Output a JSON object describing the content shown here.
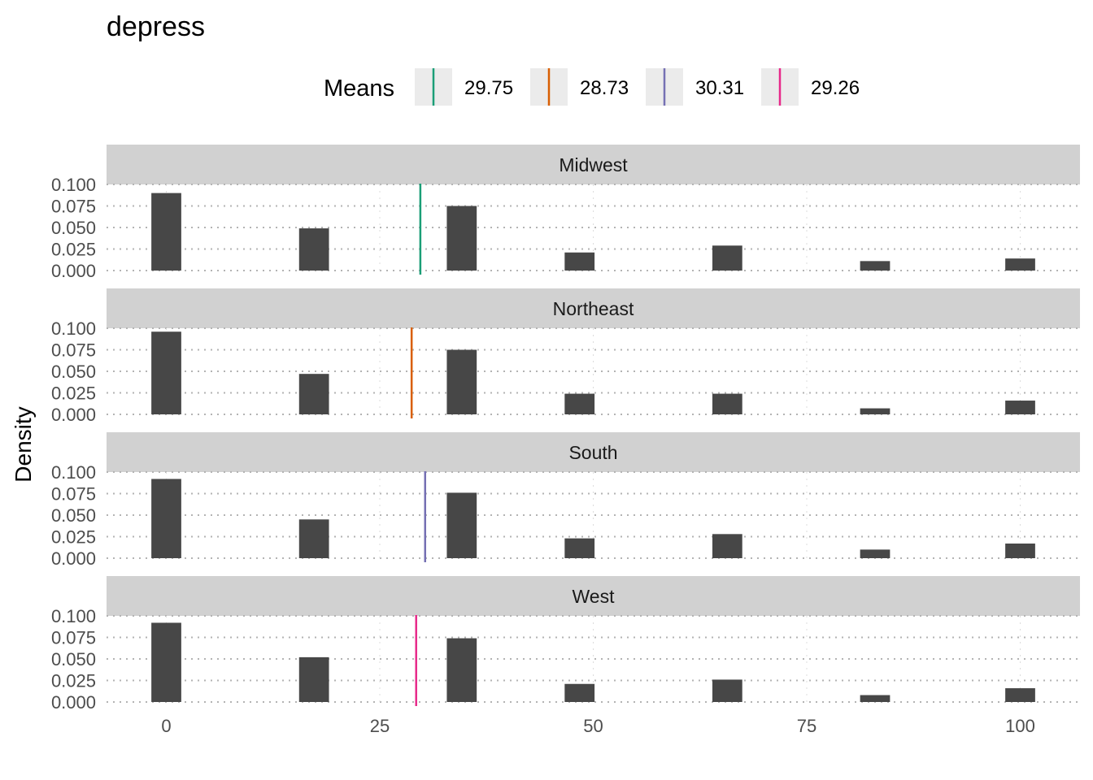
{
  "chart_data": {
    "type": "bar",
    "title": "depress",
    "xlabel": "",
    "ylabel": "Density",
    "xlim": [
      -7,
      107
    ],
    "ylim": [
      0,
      0.1
    ],
    "x_ticks": [
      0,
      25,
      50,
      75,
      100
    ],
    "x_tick_labels": [
      "0",
      "25",
      "50",
      "75",
      "100"
    ],
    "y_ticks": [
      0,
      0.025,
      0.05,
      0.075,
      0.1
    ],
    "y_tick_labels": [
      "0.000",
      "0.025",
      "0.050",
      "0.075",
      "0.100"
    ],
    "bar_width": 3.5,
    "bar_color": "#474747",
    "grid": "dotted",
    "legend": {
      "title": "Means",
      "placement": "top",
      "items": [
        {
          "label": "29.75",
          "color": "#1b9e77"
        },
        {
          "label": "28.73",
          "color": "#d95f02"
        },
        {
          "label": "30.31",
          "color": "#7570b3"
        },
        {
          "label": "29.26",
          "color": "#e7298a"
        }
      ]
    },
    "facets": [
      {
        "name": "Midwest",
        "mean": 29.75,
        "color": "#1b9e77",
        "x": [
          0,
          17.3,
          34.6,
          48.4,
          65.7,
          83,
          100
        ],
        "values": [
          0.09,
          0.049,
          0.075,
          0.021,
          0.029,
          0.011,
          0.014
        ]
      },
      {
        "name": "Northeast",
        "mean": 28.73,
        "color": "#d95f02",
        "x": [
          0,
          17.3,
          34.6,
          48.4,
          65.7,
          83,
          100
        ],
        "values": [
          0.096,
          0.047,
          0.075,
          0.024,
          0.024,
          0.007,
          0.016
        ]
      },
      {
        "name": "South",
        "mean": 30.31,
        "color": "#7570b3",
        "x": [
          0,
          17.3,
          34.6,
          48.4,
          65.7,
          83,
          100
        ],
        "values": [
          0.092,
          0.045,
          0.076,
          0.023,
          0.028,
          0.01,
          0.017
        ]
      },
      {
        "name": "West",
        "mean": 29.26,
        "color": "#e7298a",
        "x": [
          0,
          17.3,
          34.6,
          48.4,
          65.7,
          83,
          100
        ],
        "values": [
          0.092,
          0.052,
          0.074,
          0.021,
          0.026,
          0.008,
          0.016
        ]
      }
    ]
  }
}
